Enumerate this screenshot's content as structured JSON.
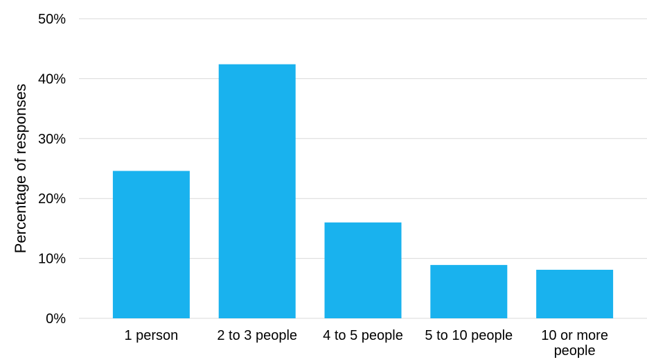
{
  "chart_data": {
    "type": "bar",
    "title": "",
    "xlabel": "",
    "ylabel": "Percentage of responses",
    "ylim": [
      0,
      50
    ],
    "yticks": [
      0,
      10,
      20,
      30,
      40,
      50
    ],
    "ytick_labels": [
      "0%",
      "10%",
      "20%",
      "30%",
      "40%",
      "50%"
    ],
    "categories": [
      [
        "1 person"
      ],
      [
        "2 to 3 people"
      ],
      [
        "4 to 5 people"
      ],
      [
        "5 to 10 people"
      ],
      [
        "10 or more",
        "people"
      ]
    ],
    "values": [
      24.6,
      42.4,
      16.0,
      8.9,
      8.1
    ],
    "grid": true,
    "legend": "none",
    "bar_color": "#19b2ee"
  }
}
